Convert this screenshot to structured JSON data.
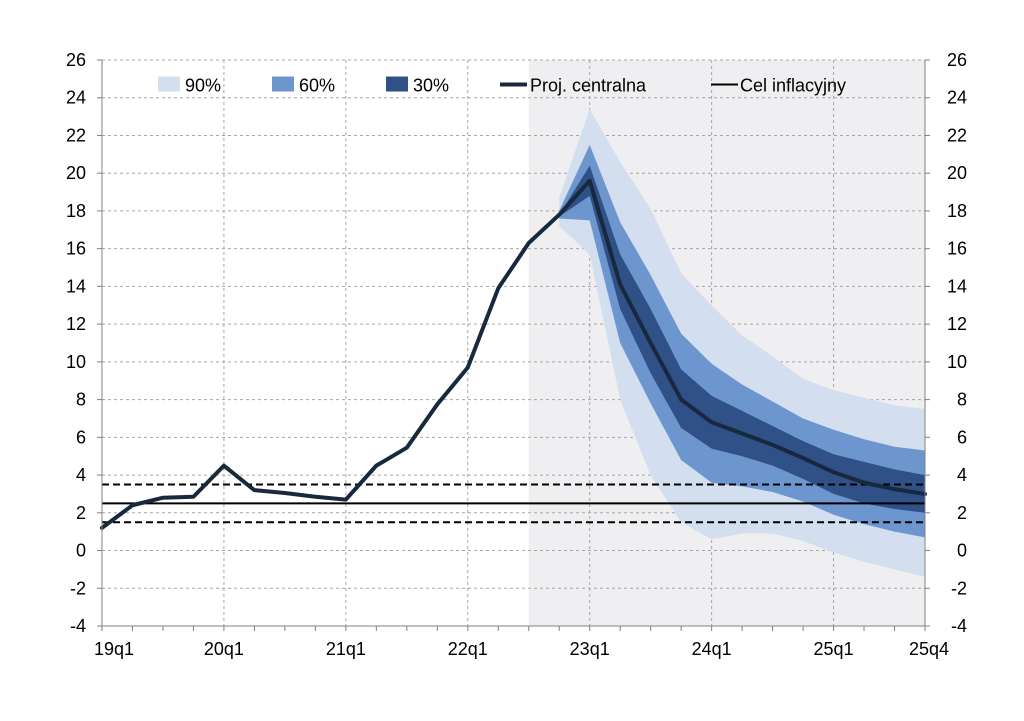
{
  "chart_data": {
    "type": "area",
    "title": "",
    "xlabel": "",
    "ylabel": "",
    "ylim": [
      -4,
      26
    ],
    "ytick_step": 2,
    "grid": true,
    "projection_start": "22q3",
    "x": [
      "19q1",
      "19q2",
      "19q3",
      "19q4",
      "20q1",
      "20q2",
      "20q3",
      "20q4",
      "21q1",
      "21q2",
      "21q3",
      "21q4",
      "22q1",
      "22q2",
      "22q3",
      "22q4",
      "23q1",
      "23q2",
      "23q3",
      "23q4",
      "24q1",
      "24q2",
      "24q3",
      "24q4",
      "25q1",
      "25q2",
      "25q3",
      "25q4"
    ],
    "x_tick_labels": [
      "19q1",
      "20q1",
      "21q1",
      "22q1",
      "23q1",
      "24q1",
      "25q1",
      "25q4"
    ],
    "y_tick_labels_left": [
      "26",
      "24",
      "22",
      "20",
      "18",
      "16",
      "14",
      "12",
      "10",
      "8",
      "6",
      "4",
      "2",
      "0",
      "-2",
      "-4"
    ],
    "y_tick_labels_right": [
      "26",
      "24",
      "22",
      "20",
      "18",
      "16",
      "14",
      "12",
      "10",
      "8",
      "6",
      "4",
      "2",
      "0",
      "-2",
      "-4"
    ],
    "central_projection": {
      "name": "Proj. centralna",
      "values": [
        1.2,
        2.4,
        2.8,
        2.85,
        4.5,
        3.2,
        3.05,
        2.85,
        2.7,
        4.5,
        5.45,
        7.75,
        9.7,
        13.9,
        16.3,
        17.8,
        19.6,
        14.1,
        11.0,
        8.0,
        6.8,
        6.2,
        5.6,
        4.9,
        4.15,
        3.6,
        3.25,
        3.0
      ]
    },
    "fan_bands": {
      "x_start_index": 15,
      "band_90": {
        "name": "90%",
        "upper": [
          18.7,
          23.4,
          20.6,
          18.1,
          14.7,
          13.0,
          11.4,
          10.3,
          9.1,
          8.5,
          8.1,
          7.7,
          7.5
        ],
        "lower": [
          17.2,
          15.7,
          8.0,
          4.0,
          1.5,
          0.6,
          0.9,
          0.9,
          0.5,
          -0.1,
          -0.6,
          -1.0,
          -1.4
        ]
      },
      "band_60": {
        "name": "60%",
        "upper": [
          18.0,
          21.5,
          17.4,
          14.6,
          11.5,
          9.9,
          8.8,
          7.9,
          7.0,
          6.4,
          5.9,
          5.5,
          5.3
        ],
        "lower": [
          17.6,
          17.5,
          11.0,
          7.8,
          4.8,
          3.6,
          3.4,
          3.1,
          2.6,
          1.9,
          1.4,
          1.0,
          0.7
        ]
      },
      "band_30": {
        "name": "30%",
        "upper": [
          17.8,
          20.4,
          15.7,
          12.8,
          9.6,
          8.2,
          7.4,
          6.6,
          5.8,
          5.1,
          4.7,
          4.3,
          4.0
        ],
        "lower": [
          17.7,
          18.8,
          12.8,
          9.4,
          6.5,
          5.4,
          5.0,
          4.5,
          3.8,
          3.0,
          2.5,
          2.2,
          2.0
        ]
      }
    },
    "inflation_target": {
      "name": "Cel inflacyjny",
      "value": 2.5,
      "band_upper": 3.5,
      "band_lower": 1.5
    },
    "legend": [
      "90%",
      "60%",
      "30%",
      "Proj. centralna",
      "Cel inflacyjny"
    ],
    "legend_position": "top"
  },
  "colors": {
    "band_90": "#d3deef",
    "band_60": "#6d96cf",
    "band_30": "#2f5188",
    "central": "#18283d",
    "target": "#000000",
    "projection_shade": "#efeff1",
    "grid": "#a6a6a6",
    "axis": "#808080"
  }
}
